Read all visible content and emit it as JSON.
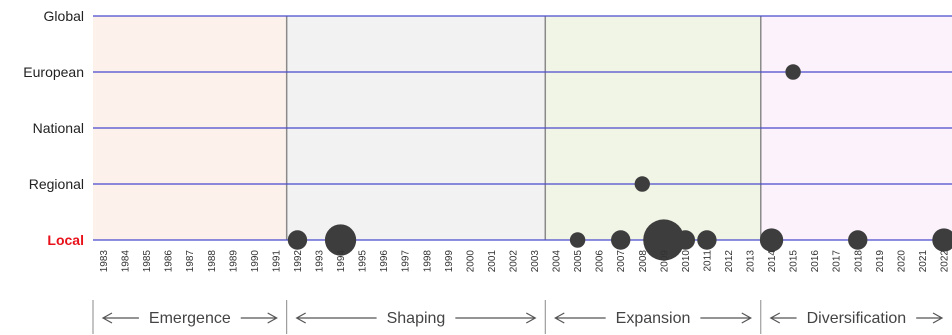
{
  "chart_data": {
    "type": "scatter",
    "title": "",
    "xlabel": "",
    "ylabel": "",
    "x_range": [
      1983,
      2022
    ],
    "x_ticks": [
      "1983",
      "1984",
      "1985",
      "1986",
      "1987",
      "1988",
      "1989",
      "1990",
      "1991",
      "1992",
      "1993",
      "1994",
      "1995",
      "1996",
      "1997",
      "1998",
      "1999",
      "2000",
      "2001",
      "2002",
      "2003",
      "2004",
      "2005",
      "2006",
      "2007",
      "2008",
      "2009",
      "2010",
      "2011",
      "2012",
      "2013",
      "2014",
      "2015",
      "2016",
      "2017",
      "2018",
      "2019",
      "2020",
      "2021",
      "2022"
    ],
    "y_categories": [
      "Local",
      "Regional",
      "National",
      "European",
      "Global"
    ],
    "highlighted_category": "Local",
    "highlight_color": "#e8111a",
    "grid_line_color": "#4a4acd",
    "point_color": "#3d3d3d",
    "phases": [
      {
        "label": "Emergence",
        "start": 1983,
        "end": 1992,
        "color": "#fdf1ec"
      },
      {
        "label": "Shaping",
        "start": 1992,
        "end": 2004,
        "color": "#f2f2f2"
      },
      {
        "label": "Expansion",
        "start": 2004,
        "end": 2014,
        "color": "#f1f5e6"
      },
      {
        "label": "Diversification",
        "start": 2014,
        "end": 2022,
        "color": "#fbf2fb"
      }
    ],
    "points": [
      {
        "x": 1992,
        "y": "Local",
        "size": 2
      },
      {
        "x": 1994,
        "y": "Local",
        "size": 5
      },
      {
        "x": 2005,
        "y": "Local",
        "size": 1
      },
      {
        "x": 2007,
        "y": "Local",
        "size": 2
      },
      {
        "x": 2008,
        "y": "Regional",
        "size": 1
      },
      {
        "x": 2009,
        "y": "Local",
        "size": 8
      },
      {
        "x": 2010,
        "y": "Local",
        "size": 2
      },
      {
        "x": 2011,
        "y": "Local",
        "size": 2
      },
      {
        "x": 2014,
        "y": "Local",
        "size": 3
      },
      {
        "x": 2015,
        "y": "European",
        "size": 1
      },
      {
        "x": 2018,
        "y": "Local",
        "size": 2
      },
      {
        "x": 2022,
        "y": "Local",
        "size": 3
      }
    ]
  }
}
